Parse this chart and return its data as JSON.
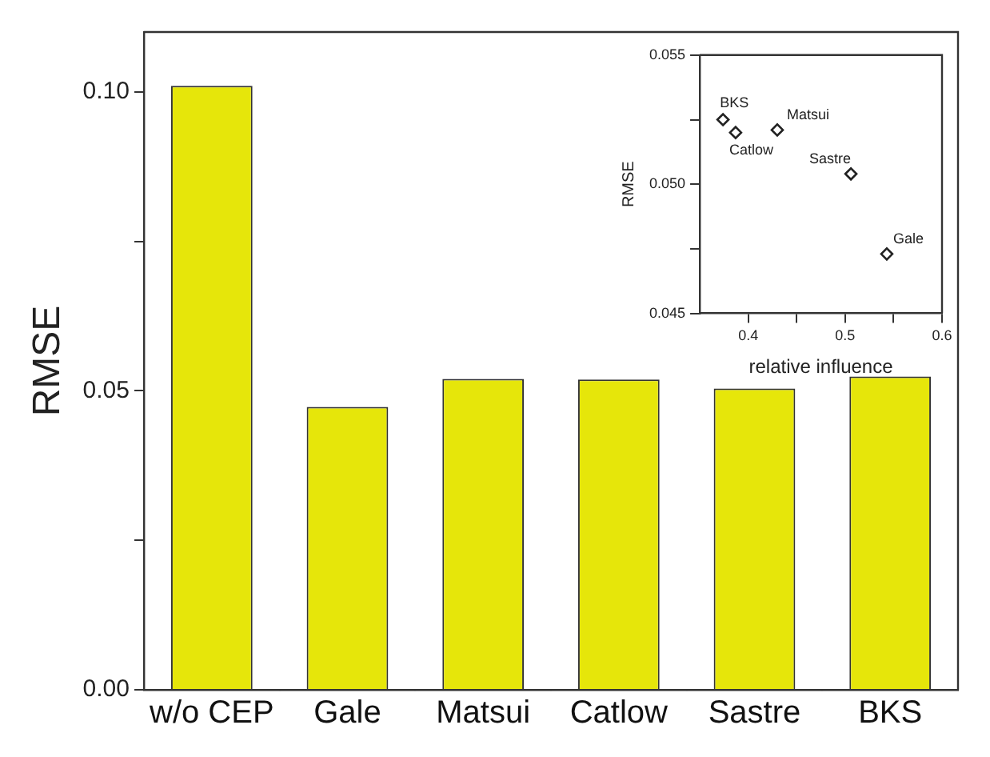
{
  "chart_data": [
    {
      "type": "bar",
      "ylabel": "RMSE",
      "categories": [
        "w/o CEP",
        "Gale",
        "Matsui",
        "Catlow",
        "Sastre",
        "BKS"
      ],
      "values": [
        0.101,
        0.0473,
        0.052,
        0.0519,
        0.0504,
        0.0524
      ],
      "color": "#e6e60a",
      "ylim": [
        0,
        0.11
      ],
      "yticks": [
        {
          "value": 0,
          "label": "0.00"
        },
        {
          "value": 0.025,
          "label": null
        },
        {
          "value": 0.05,
          "label": "0.05"
        },
        {
          "value": 0.075,
          "label": null
        },
        {
          "value": 0.1,
          "label": "0.10"
        }
      ],
      "grid": false,
      "legend": false
    },
    {
      "type": "scatter",
      "xlabel": "relative influence",
      "ylabel": "RMSE",
      "marker": "diamond",
      "x": [
        0.374,
        0.387,
        0.43,
        0.506,
        0.543
      ],
      "values": [
        0.0525,
        0.052,
        0.0521,
        0.0504,
        0.0473
      ],
      "color": "#ffffff",
      "xlim": [
        0.35,
        0.6
      ],
      "xticks": [
        0.4,
        {
          "value": 0.45,
          "label": null
        },
        0.5,
        {
          "value": 0.55,
          "label": null
        },
        0.6
      ],
      "ylim": [
        0.045,
        0.055
      ],
      "yticks": [
        {
          "value": 0.045,
          "label": "0.045"
        },
        {
          "value": 0.0475,
          "label": null
        },
        {
          "value": 0.05,
          "label": "0.050"
        },
        {
          "value": 0.0525,
          "label": null
        },
        {
          "value": 0.055,
          "label": "0.055"
        }
      ],
      "annotations": [
        {
          "text": "BKS",
          "x": 0.374,
          "y": 0.0525
        },
        {
          "text": "Catlow",
          "x": 0.387,
          "y": 0.052
        },
        {
          "text": "Matsui",
          "x": 0.43,
          "y": 0.0521
        },
        {
          "text": "Sastre",
          "x": 0.506,
          "y": 0.0504
        },
        {
          "text": "Gale",
          "x": 0.543,
          "y": 0.0473
        }
      ],
      "grid": false,
      "legend": false
    }
  ]
}
